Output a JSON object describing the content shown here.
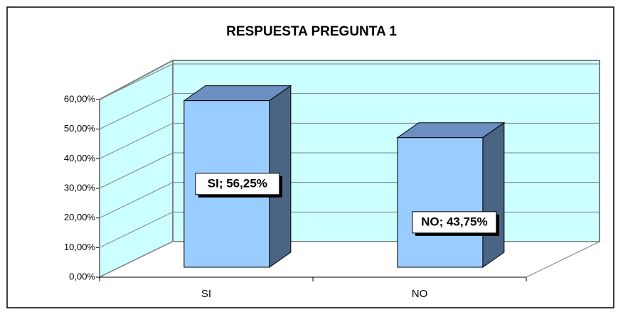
{
  "chart_data": {
    "type": "bar3d",
    "title": "RESPUESTA PREGUNTA 1",
    "categories": [
      "SI",
      "NO"
    ],
    "values": [
      56.25,
      43.75
    ],
    "value_labels": [
      "SI; 56,25%",
      "NO; 43,75%"
    ],
    "color": "#99ccff",
    "ylim": [
      0,
      60
    ],
    "yticks": [
      {
        "value": 0,
        "label": "0,00%"
      },
      {
        "value": 10,
        "label": "10,00%"
      },
      {
        "value": 20,
        "label": "20,00%"
      },
      {
        "value": 30,
        "label": "30,00%"
      },
      {
        "value": 40,
        "label": "40,00%"
      },
      {
        "value": 50,
        "label": "50,00%"
      },
      {
        "value": 60,
        "label": "60,00%"
      }
    ],
    "grid": true
  }
}
